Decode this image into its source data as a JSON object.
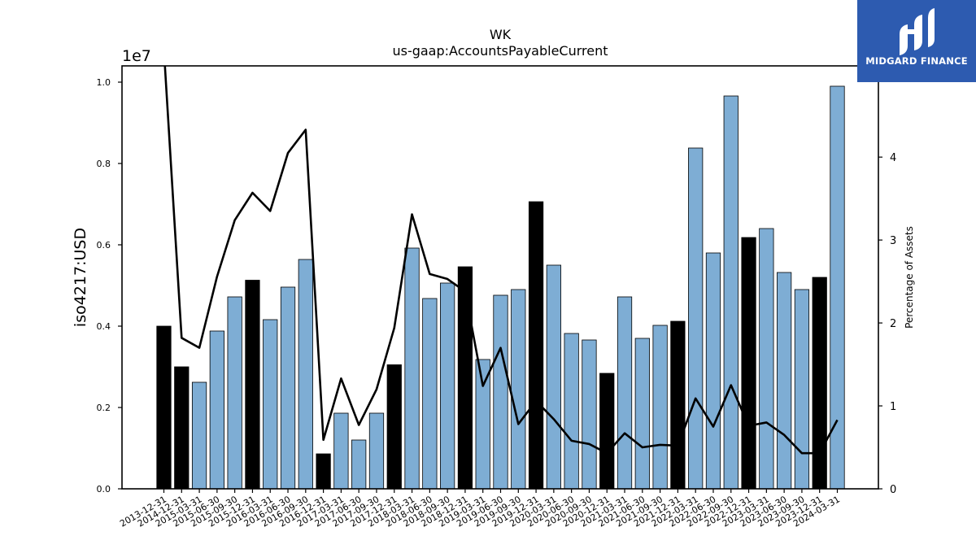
{
  "logo": {
    "text": "MIDGARD FINANCE",
    "icon": "midgard-m-logo-icon",
    "background": "#2d5bb0"
  },
  "chart_data": {
    "type": "bar",
    "title": "WK",
    "subtitle": "us-gaap:AccountsPayableCurrent",
    "ylabel": "iso4217:USD",
    "y_offset_label": "1e7",
    "y2label": "Percentage of Assets",
    "ylim": [
      0,
      10400000
    ],
    "y2lim": [
      0,
      5.1
    ],
    "yticks": [
      0,
      2000000,
      4000000,
      6000000,
      8000000,
      10000000
    ],
    "ytick_labels": [
      "0.0",
      "0.2",
      "0.4",
      "0.6",
      "0.8",
      "1.0"
    ],
    "y2ticks": [
      0,
      1,
      2,
      3,
      4
    ],
    "y2tick_labels": [
      "0",
      "1",
      "2",
      "3",
      "4"
    ],
    "grid": false,
    "categories": [
      "2013-12-31",
      "2014-12-31",
      "2015-03-31",
      "2015-06-30",
      "2015-09-30",
      "2015-12-31",
      "2016-03-31",
      "2016-06-30",
      "2016-09-30",
      "2016-12-31",
      "2017-03-31",
      "2017-06-30",
      "2017-09-30",
      "2017-12-31",
      "2018-03-31",
      "2018-06-30",
      "2018-09-30",
      "2018-12-31",
      "2019-03-31",
      "2019-06-30",
      "2019-09-30",
      "2019-12-31",
      "2020-03-31",
      "2020-06-30",
      "2020-09-30",
      "2020-12-31",
      "2021-03-31",
      "2021-06-30",
      "2021-09-30",
      "2021-12-31",
      "2022-03-31",
      "2022-06-30",
      "2022-09-30",
      "2022-12-31",
      "2023-03-31",
      "2023-06-30",
      "2023-09-30",
      "2023-12-31",
      "2024-03-31"
    ],
    "series": [
      {
        "type": "bar",
        "values": [
          4000000,
          3000000,
          2620000,
          3880000,
          4720000,
          5130000,
          4160000,
          4960000,
          5640000,
          860000,
          1860000,
          1200000,
          1860000,
          3050000,
          5920000,
          4680000,
          5060000,
          5460000,
          3180000,
          4760000,
          4900000,
          7060000,
          5500000,
          3820000,
          3660000,
          2840000,
          4720000,
          3700000,
          4020000,
          4120000,
          8380000,
          5800000,
          9660000,
          6180000,
          6400000,
          5320000,
          4900000,
          5200000,
          9900000
        ],
        "colors": [
          "#000000",
          "#000000",
          "#7eadd4",
          "#7eadd4",
          "#7eadd4",
          "#000000",
          "#7eadd4",
          "#7eadd4",
          "#7eadd4",
          "#000000",
          "#7eadd4",
          "#7eadd4",
          "#7eadd4",
          "#000000",
          "#7eadd4",
          "#7eadd4",
          "#7eadd4",
          "#000000",
          "#7eadd4",
          "#7eadd4",
          "#7eadd4",
          "#000000",
          "#7eadd4",
          "#7eadd4",
          "#7eadd4",
          "#000000",
          "#7eadd4",
          "#7eadd4",
          "#7eadd4",
          "#000000",
          "#7eadd4",
          "#7eadd4",
          "#7eadd4",
          "#000000",
          "#7eadd4",
          "#7eadd4",
          "#7eadd4",
          "#000000",
          "#7eadd4"
        ]
      },
      {
        "type": "line",
        "axis": "right",
        "color": "#000000",
        "values": [
          5.3,
          1.82,
          1.7,
          2.56,
          3.24,
          3.57,
          3.35,
          4.05,
          4.33,
          0.59,
          1.33,
          0.77,
          1.2,
          1.94,
          3.31,
          2.59,
          2.53,
          2.38,
          1.24,
          1.7,
          0.78,
          1.06,
          0.84,
          0.58,
          0.54,
          0.43,
          0.67,
          0.5,
          0.53,
          0.52,
          1.09,
          0.75,
          1.25,
          0.76,
          0.8,
          0.65,
          0.43,
          0.43,
          0.83
        ]
      }
    ]
  }
}
